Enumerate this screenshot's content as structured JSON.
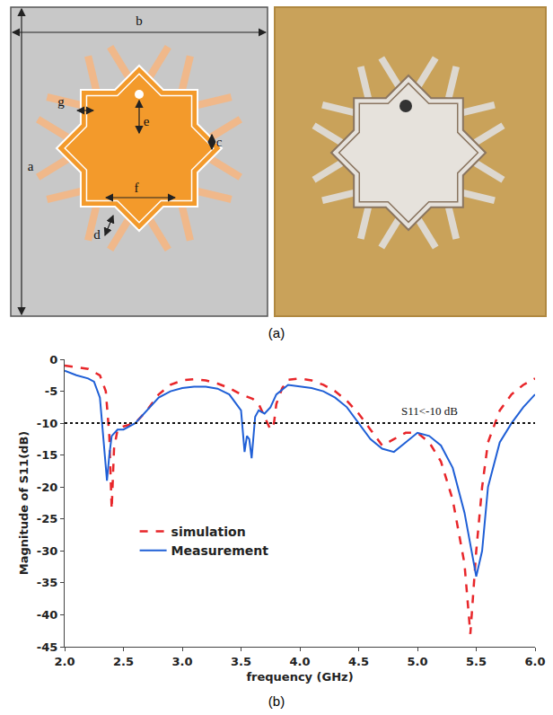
{
  "diagram": {
    "caption": "(a)",
    "labels": [
      "a",
      "b",
      "c",
      "d",
      "e",
      "f",
      "g"
    ]
  },
  "chart_data": {
    "type": "line",
    "caption": "(b)",
    "x_label": "frequency (GHz)",
    "y_label": "Magnitude of S11(dB)",
    "xlim": [
      2,
      6
    ],
    "xticks": [
      {
        "value": 2,
        "label": "2.0"
      },
      {
        "value": 2.5,
        "label": "2.5"
      },
      {
        "value": 3,
        "label": "3.0"
      },
      {
        "value": 3.5,
        "label": "3.5"
      },
      {
        "value": 4,
        "label": "4.0"
      },
      {
        "value": 4.5,
        "label": "4.5"
      },
      {
        "value": 5,
        "label": "5.0"
      },
      {
        "value": 5.5,
        "label": "5.5"
      },
      {
        "value": 6,
        "label": "6.0"
      }
    ],
    "ylim": [
      -45,
      0
    ],
    "yticks": [
      -45,
      -40,
      -35,
      -30,
      -25,
      -20,
      -15,
      -10,
      -5,
      0
    ],
    "grid": false,
    "legend": "left",
    "reference_line": {
      "value": -10,
      "line_style": "dotted",
      "label": "S11<-10 dB",
      "label_x": 5.1
    },
    "series": [
      {
        "name": "simulation",
        "color": "#e8262a",
        "line_style": "dash",
        "x": [
          2.0,
          2.1,
          2.2,
          2.3,
          2.35,
          2.38,
          2.4,
          2.42,
          2.45,
          2.5,
          2.6,
          2.7,
          2.8,
          2.9,
          3.0,
          3.1,
          3.2,
          3.3,
          3.4,
          3.5,
          3.6,
          3.65,
          3.7,
          3.75,
          3.78,
          3.8,
          3.85,
          3.9,
          4.0,
          4.1,
          4.2,
          4.3,
          4.4,
          4.5,
          4.6,
          4.7,
          4.8,
          4.9,
          5.0,
          5.1,
          5.2,
          5.3,
          5.4,
          5.45,
          5.5,
          5.55,
          5.6,
          5.7,
          5.8,
          5.9,
          6.0
        ],
        "values": [
          -1,
          -1.2,
          -1.5,
          -2.5,
          -5,
          -12,
          -23.5,
          -14,
          -11,
          -10.5,
          -10,
          -8,
          -5.5,
          -4,
          -3.3,
          -3.1,
          -3.3,
          -3.8,
          -4.5,
          -5.5,
          -6.2,
          -7,
          -9,
          -11,
          -10,
          -7,
          -4.5,
          -3.2,
          -3,
          -3.3,
          -4,
          -5,
          -6.5,
          -8.5,
          -11,
          -13.5,
          -12.5,
          -11.5,
          -11.5,
          -13,
          -16,
          -22,
          -32,
          -43,
          -30,
          -20,
          -13,
          -8,
          -5.5,
          -4,
          -3
        ]
      },
      {
        "name": "Measurement",
        "color": "#1f5fd6",
        "line_style": "solid",
        "x": [
          2.0,
          2.1,
          2.2,
          2.25,
          2.3,
          2.33,
          2.36,
          2.38,
          2.4,
          2.45,
          2.5,
          2.6,
          2.7,
          2.8,
          2.9,
          3.0,
          3.1,
          3.2,
          3.3,
          3.4,
          3.5,
          3.53,
          3.55,
          3.57,
          3.59,
          3.62,
          3.65,
          3.7,
          3.75,
          3.8,
          3.9,
          4.0,
          4.1,
          4.2,
          4.3,
          4.4,
          4.5,
          4.6,
          4.7,
          4.8,
          4.9,
          5.0,
          5.1,
          5.2,
          5.3,
          5.4,
          5.5,
          5.55,
          5.6,
          5.7,
          5.8,
          5.9,
          6.0
        ],
        "values": [
          -1.8,
          -2.5,
          -3,
          -3.5,
          -6,
          -12,
          -19,
          -15,
          -12,
          -11,
          -11,
          -10,
          -8,
          -6,
          -5,
          -4.5,
          -4.3,
          -4.3,
          -4.6,
          -5.5,
          -8,
          -14.5,
          -12,
          -12.5,
          -15.5,
          -9,
          -8,
          -8.5,
          -7.5,
          -5.5,
          -4,
          -4.2,
          -4.5,
          -5,
          -6,
          -7.5,
          -10,
          -12.5,
          -14,
          -14.5,
          -13,
          -11.5,
          -12,
          -13.5,
          -17,
          -24,
          -34,
          -30,
          -20,
          -13,
          -10,
          -7.5,
          -5.5
        ]
      }
    ]
  }
}
